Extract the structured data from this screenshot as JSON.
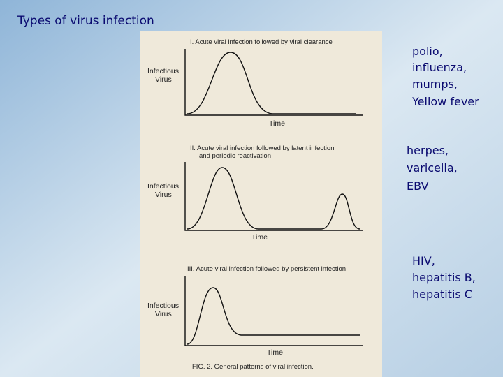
{
  "header": {
    "title": "Types of virus infection"
  },
  "figure": {
    "panels": [
      {
        "title": [
          "I. Acute viral infection followed by viral clearance"
        ],
        "y_label": [
          "Infectious",
          "Virus"
        ],
        "x_label": "Time"
      },
      {
        "title": [
          "II. Acute viral infection followed by latent infection",
          "and periodic reactivation"
        ],
        "y_label": [
          "Infectious",
          "Virus"
        ],
        "x_label": "Time"
      },
      {
        "title": [
          "III. Acute viral infection followed by persistent infection"
        ],
        "y_label": [
          "Infectious",
          "Virus"
        ],
        "x_label": "Time"
      }
    ],
    "caption": "FIG. 2. General patterns of viral infection."
  },
  "examples": [
    [
      "polio,",
      "influenza,",
      "mumps,",
      "Yellow fever"
    ],
    [
      "herpes,",
      "varicella,",
      "EBV"
    ],
    [
      "HIV,",
      "hepatitis B,",
      "hepatitis C"
    ]
  ]
}
